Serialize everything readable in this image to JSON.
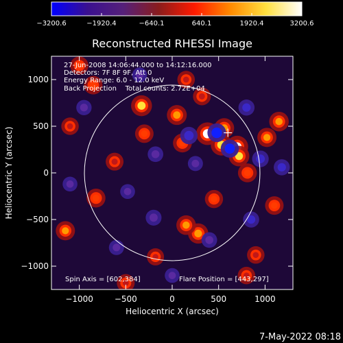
{
  "chart_data": {
    "type": "heatmap",
    "title": "Reconstructed RHESSI Image",
    "xlabel": "Heliocentric X (arcsec)",
    "ylabel": "Heliocentric Y (arcsec)",
    "xlim": [
      -1300,
      1300
    ],
    "ylim": [
      -1250,
      1250
    ],
    "x_ticks": [
      -1000,
      -500,
      0,
      500,
      1000
    ],
    "x_tick_labels": [
      "−1000",
      "−500",
      "0",
      "500",
      "1000"
    ],
    "y_ticks": [
      -1000,
      -500,
      0,
      500,
      1000
    ],
    "y_tick_labels": [
      "−1000",
      "−500",
      "0",
      "500",
      "1000"
    ],
    "colorbar": {
      "range": [
        -3200.6,
        3200.6
      ],
      "ticks": [
        -3200.6,
        -1920.4,
        -640.1,
        640.1,
        1920.4,
        3200.6
      ],
      "tick_labels": [
        "−3200.6",
        "−1920.4",
        "−640.1",
        "640.1",
        "1920.4",
        "3200.6"
      ],
      "colors": [
        "#0000ff",
        "#3a1090",
        "#55207a",
        "#8a1c1c",
        "#ff1a00",
        "#ff8a00",
        "#ffe040",
        "#ffffff"
      ]
    },
    "info_lines": [
      "27-Jun-2008 14:06:44.000 to 14:12:16.000",
      "Detectors: 7F 8F 9F, Att 0",
      "Energy Range: 6.0 - 12.0 keV",
      "Back Projection    Total counts: 2.72E+04"
    ],
    "spin_axis": "Spin Axis = [602,384]",
    "flare_position": "Flare Position = [443,297]",
    "solar_disk_radius": 945,
    "marker": [
      600,
      430
    ],
    "sources": [
      {
        "x": 380,
        "y": 420,
        "value": 3000
      },
      {
        "x": 530,
        "y": 300,
        "value": 2600
      },
      {
        "x": 560,
        "y": 480,
        "value": 2200
      },
      {
        "x": 700,
        "y": 280,
        "value": 2800
      },
      {
        "x": 720,
        "y": 180,
        "value": 2400
      },
      {
        "x": -330,
        "y": 720,
        "value": 2500
      },
      {
        "x": 50,
        "y": 620,
        "value": 2200
      },
      {
        "x": -300,
        "y": 420,
        "value": 1800
      },
      {
        "x": 110,
        "y": 320,
        "value": 1900
      },
      {
        "x": 280,
        "y": -650,
        "value": 2300
      },
      {
        "x": 150,
        "y": -560,
        "value": 2100
      },
      {
        "x": 450,
        "y": -280,
        "value": 1700
      },
      {
        "x": -820,
        "y": -270,
        "value": 1900
      },
      {
        "x": -620,
        "y": 120,
        "value": 1600
      },
      {
        "x": -1150,
        "y": -620,
        "value": 2000
      },
      {
        "x": 1150,
        "y": 550,
        "value": 2100
      },
      {
        "x": 1020,
        "y": 380,
        "value": 2000
      },
      {
        "x": -850,
        "y": 940,
        "value": 1800
      },
      {
        "x": -1000,
        "y": 1150,
        "value": 1700
      },
      {
        "x": -500,
        "y": -1180,
        "value": 1600
      },
      {
        "x": 800,
        "y": -1100,
        "value": 1500
      },
      {
        "x": 900,
        "y": -880,
        "value": 1500
      },
      {
        "x": -180,
        "y": -900,
        "value": 1400
      },
      {
        "x": 320,
        "y": 820,
        "value": 1600
      },
      {
        "x": 150,
        "y": 1000,
        "value": 1500
      },
      {
        "x": 810,
        "y": 0,
        "value": 1900
      },
      {
        "x": -1100,
        "y": 500,
        "value": 1500
      },
      {
        "x": 1100,
        "y": -350,
        "value": 1800
      },
      {
        "x": 480,
        "y": 430,
        "value": -3000
      },
      {
        "x": 620,
        "y": 260,
        "value": -2800
      },
      {
        "x": 180,
        "y": 400,
        "value": -2500
      },
      {
        "x": -180,
        "y": 200,
        "value": -1800
      },
      {
        "x": 950,
        "y": 150,
        "value": -2200
      },
      {
        "x": 1180,
        "y": 60,
        "value": -2000
      },
      {
        "x": 800,
        "y": 700,
        "value": -2000
      },
      {
        "x": 850,
        "y": -500,
        "value": -2000
      },
      {
        "x": -200,
        "y": -480,
        "value": -1900
      },
      {
        "x": 400,
        "y": -720,
        "value": -1800
      },
      {
        "x": -950,
        "y": 700,
        "value": -1700
      },
      {
        "x": -600,
        "y": -800,
        "value": -1600
      },
      {
        "x": -350,
        "y": 1050,
        "value": -1500
      },
      {
        "x": 0,
        "y": -1100,
        "value": -1500
      },
      {
        "x": -1100,
        "y": -120,
        "value": -1500
      },
      {
        "x": 250,
        "y": 100,
        "value": -1600
      },
      {
        "x": -480,
        "y": -200,
        "value": -1500
      }
    ]
  },
  "footer": {
    "timestamp": "7-May-2022 08:18"
  }
}
